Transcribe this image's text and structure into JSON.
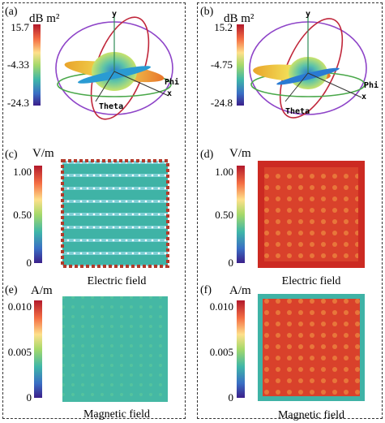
{
  "panels": {
    "a": {
      "label": "(a)",
      "unit": "dB m²",
      "ticks": [
        "15.7",
        "-4.33",
        "-24.3"
      ]
    },
    "b": {
      "label": "(b)",
      "unit": "dB m²",
      "ticks": [
        "15.2",
        "-4.75",
        "-24.8"
      ]
    },
    "c": {
      "label": "(c)",
      "unit": "V/m",
      "ticks": [
        "1.00",
        "0.50",
        "0"
      ],
      "caption": "Electric field"
    },
    "d": {
      "label": "(d)",
      "unit": "V/m",
      "ticks": [
        "1.00",
        "0.50",
        "0"
      ],
      "caption": "Electric field"
    },
    "e": {
      "label": "(e)",
      "unit": "A/m",
      "ticks": [
        "0.010",
        "0.005",
        "0"
      ],
      "caption": "Magnetic field"
    },
    "f": {
      "label": "(f)",
      "unit": "A/m",
      "ticks": [
        "0.010",
        "0.005",
        "0"
      ],
      "caption": "Magnetic field"
    }
  },
  "axes": {
    "x": "x",
    "y": "y",
    "theta": "Theta",
    "phi": "Phi"
  },
  "colors": {
    "jet_top": "#d7191c",
    "jet_mid": "#a6d96a",
    "jet_bottom": "#3b1f8a",
    "field_red": "#d73027",
    "field_teal": "#35b5a8"
  }
}
